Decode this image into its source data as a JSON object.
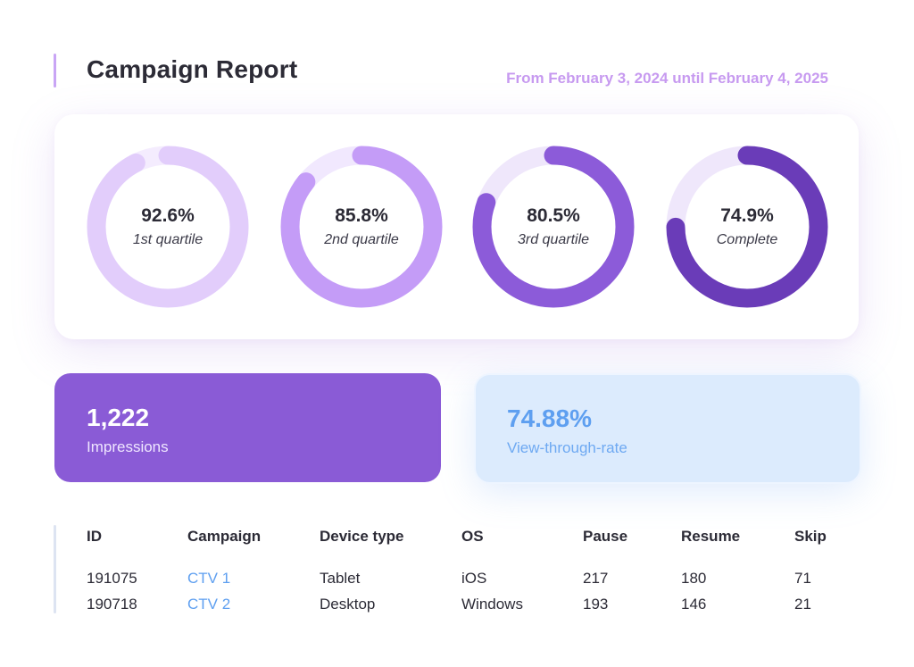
{
  "header": {
    "title": "Campaign Report",
    "date_range": "From February 3, 2024 until February 4, 2025"
  },
  "quartiles": [
    {
      "value": "92.6%",
      "label": "1st quartile",
      "percent": 92.6,
      "color": "#e2cdfb",
      "track": "#f4ecfe"
    },
    {
      "value": "85.8%",
      "label": "2nd quartile",
      "percent": 85.8,
      "color": "#c49cf7",
      "track": "#f1e8fe"
    },
    {
      "value": "80.5%",
      "label": "3rd quartile",
      "percent": 80.5,
      "color": "#8c5bd9",
      "track": "#efe7fb"
    },
    {
      "value": "74.9%",
      "label": "Complete",
      "percent": 74.9,
      "color": "#6a3cb8",
      "track": "#efe7fb"
    }
  ],
  "impressions": {
    "value": "1,222",
    "label": "Impressions",
    "color": "#8a5bd6"
  },
  "vtr": {
    "value": "74.88%",
    "label": "View-through-rate",
    "color": "#dcebfd"
  },
  "table": {
    "headers": [
      "ID",
      "Campaign",
      "Device type",
      "OS",
      "Pause",
      "Resume",
      "Skip"
    ],
    "rows": [
      [
        "191075",
        "CTV 1",
        "Tablet",
        "iOS",
        "217",
        "180",
        "71"
      ],
      [
        "190718",
        "CTV 2",
        "Desktop",
        "Windows",
        "193",
        "146",
        "21"
      ]
    ]
  }
}
